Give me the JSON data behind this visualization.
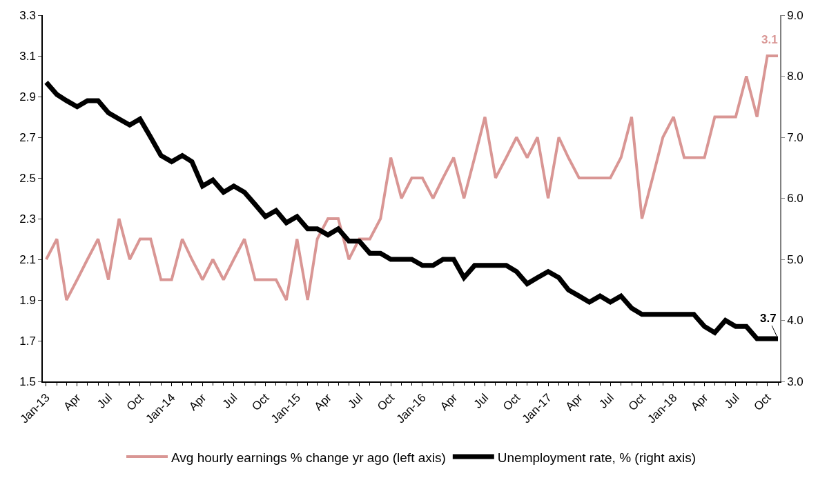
{
  "chart_data": {
    "type": "line",
    "marker": "none",
    "line_style": "solid",
    "legend": "bottom",
    "x": [
      "2013-01",
      "2013-02",
      "2013-03",
      "2013-04",
      "2013-05",
      "2013-06",
      "2013-07",
      "2013-08",
      "2013-09",
      "2013-10",
      "2013-11",
      "2013-12",
      "2014-01",
      "2014-02",
      "2014-03",
      "2014-04",
      "2014-05",
      "2014-06",
      "2014-07",
      "2014-08",
      "2014-09",
      "2014-10",
      "2014-11",
      "2014-12",
      "2015-01",
      "2015-02",
      "2015-03",
      "2015-04",
      "2015-05",
      "2015-06",
      "2015-07",
      "2015-08",
      "2015-09",
      "2015-10",
      "2015-11",
      "2015-12",
      "2016-01",
      "2016-02",
      "2016-03",
      "2016-04",
      "2016-05",
      "2016-06",
      "2016-07",
      "2016-08",
      "2016-09",
      "2016-10",
      "2016-11",
      "2016-12",
      "2017-01",
      "2017-02",
      "2017-03",
      "2017-04",
      "2017-05",
      "2017-06",
      "2017-07",
      "2017-08",
      "2017-09",
      "2017-10",
      "2017-11",
      "2017-12",
      "2018-01",
      "2018-02",
      "2018-03",
      "2018-04",
      "2018-05",
      "2018-06",
      "2018-07",
      "2018-08",
      "2018-09",
      "2018-10",
      "2018-11"
    ],
    "series": [
      {
        "name": "Avg hourly earnings % change yr ago (left axis)",
        "color": "#d99694",
        "values": [
          2.1,
          2.2,
          1.9,
          2.0,
          2.1,
          2.2,
          2.0,
          2.3,
          2.1,
          2.2,
          2.2,
          2.0,
          2.0,
          2.2,
          2.1,
          2.0,
          2.1,
          2.0,
          2.1,
          2.2,
          2.0,
          2.0,
          2.0,
          1.9,
          2.2,
          1.9,
          2.2,
          2.3,
          2.3,
          2.1,
          2.2,
          2.2,
          2.3,
          2.6,
          2.4,
          2.5,
          2.5,
          2.4,
          2.5,
          2.6,
          2.4,
          2.6,
          2.8,
          2.5,
          2.6,
          2.7,
          2.6,
          2.7,
          2.4,
          2.7,
          2.6,
          2.5,
          2.5,
          2.5,
          2.5,
          2.6,
          2.8,
          2.3,
          2.5,
          2.7,
          2.8,
          2.6,
          2.6,
          2.6,
          2.8,
          2.8,
          2.8,
          3.0,
          2.8,
          3.1,
          3.1
        ]
      },
      {
        "name": "Unemployment rate, % (right axis)",
        "color": "#000000",
        "axis": "y2",
        "values": [
          7.9,
          7.7,
          7.6,
          7.5,
          7.6,
          7.6,
          7.4,
          7.3,
          7.2,
          7.3,
          7.0,
          6.7,
          6.6,
          6.7,
          6.6,
          6.2,
          6.3,
          6.1,
          6.2,
          6.1,
          5.9,
          5.7,
          5.8,
          5.6,
          5.7,
          5.5,
          5.5,
          5.4,
          5.5,
          5.3,
          5.3,
          5.1,
          5.1,
          5.0,
          5.0,
          5.0,
          4.9,
          4.9,
          5.0,
          5.0,
          4.7,
          4.9,
          4.9,
          4.9,
          4.9,
          4.8,
          4.6,
          4.7,
          4.8,
          4.7,
          4.5,
          4.4,
          4.3,
          4.4,
          4.3,
          4.4,
          4.2,
          4.1,
          4.1,
          4.1,
          4.1,
          4.1,
          4.1,
          3.9,
          3.8,
          4.0,
          3.9,
          3.9,
          3.7,
          3.7,
          3.7
        ]
      }
    ],
    "annotations": [
      {
        "text": "3.1",
        "x": "2018-11",
        "y": 3.1
      },
      "3.7"
    ],
    "xlim": [
      "2012-12-22",
      "2018-11-07"
    ],
    "xticks": [
      {
        "value": "2013-01",
        "label": "Jan-13"
      },
      {
        "value": "2013-04",
        "label": "Apr"
      },
      {
        "value": "2013-07",
        "label": "Jul"
      },
      {
        "value": "2013-10",
        "label": "Oct"
      },
      {
        "value": "2014-01",
        "label": "Jan-14"
      },
      {
        "value": "2014-04",
        "label": "Apr"
      },
      {
        "value": "2014-07",
        "label": "Jul"
      },
      {
        "value": "2014-10",
        "label": "Oct"
      },
      {
        "value": "2015-01",
        "label": "Jan-15"
      },
      {
        "value": "2015-04",
        "label": "Apr"
      },
      {
        "value": "2015-07",
        "label": "Jul"
      },
      {
        "value": "2015-10",
        "label": "Oct"
      },
      {
        "value": "2016-01",
        "label": "Jan-16"
      },
      {
        "value": "2016-04",
        "label": "Apr"
      },
      {
        "value": "2016-07",
        "label": "Jul"
      },
      {
        "value": "2016-10",
        "label": "Oct"
      },
      {
        "value": "2017-01",
        "label": "Jan-17"
      },
      {
        "value": "2017-04",
        "label": "Apr"
      },
      {
        "value": "2017-07",
        "label": "Jul"
      },
      {
        "value": "2017-10",
        "label": "Oct"
      },
      {
        "value": "2018-01",
        "label": "Jan-18"
      },
      {
        "value": "2018-04",
        "label": "Apr"
      },
      {
        "value": "2018-07",
        "label": "Jul"
      },
      {
        "value": "2018-10",
        "label": "Oct"
      }
    ],
    "ylim": [
      1.5,
      3.3
    ],
    "yticks": [
      1.5,
      1.7,
      1.9,
      2.1,
      2.3,
      2.5,
      2.7,
      2.9,
      3.1,
      3.3
    ],
    "y2lim": [
      3,
      9
    ],
    "y2ticks": [
      {
        "value": 3,
        "label": "3.0"
      },
      {
        "value": 4,
        "label": "4.0"
      },
      {
        "value": 5,
        "label": "5.0"
      },
      {
        "value": 6,
        "label": "6.0"
      },
      {
        "value": 7,
        "label": "7.0"
      },
      {
        "value": 8,
        "label": "8.0"
      },
      {
        "value": 9,
        "label": "9.0"
      }
    ]
  }
}
